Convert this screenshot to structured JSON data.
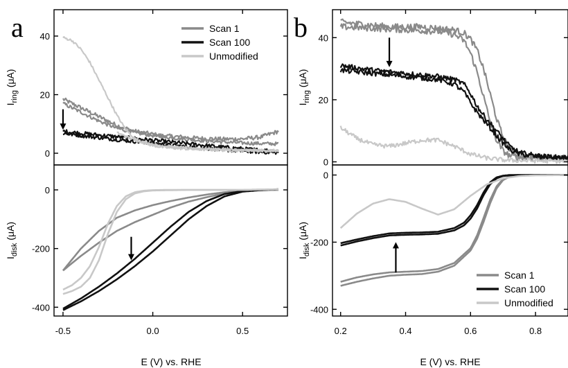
{
  "panels": {
    "a": {
      "letter": "a"
    },
    "b": {
      "letter": "b"
    }
  },
  "chart_data": [
    {
      "type": "line",
      "panel": "a-top",
      "ylabel_main": "I",
      "ylabel_sub": "ring",
      "ylabel_unit": " (μA)",
      "xlim": [
        -0.55,
        0.75
      ],
      "ylim": [
        -4,
        49
      ],
      "yticks": [
        0,
        20,
        40
      ],
      "xticks": [
        -0.5,
        0.0,
        0.5
      ],
      "legend": {
        "position": "top-right",
        "entries": [
          "Scan 1",
          "Scan 100",
          "Unmodified"
        ]
      },
      "series": [
        {
          "name": "Scan 1",
          "color": "#8a8a8a",
          "noise": 0.7,
          "x": [
            -0.5,
            -0.45,
            -0.4,
            -0.35,
            -0.3,
            -0.25,
            -0.2,
            -0.15,
            -0.1,
            -0.05,
            0.0,
            0.05,
            0.1,
            0.15,
            0.2,
            0.3,
            0.4,
            0.5,
            0.6,
            0.7
          ],
          "y": [
            18.5,
            17,
            15.5,
            14,
            12.5,
            11,
            9.5,
            8.5,
            7.5,
            7,
            6.5,
            6,
            5.8,
            5.6,
            5.3,
            5,
            4.8,
            4.9,
            5.5,
            7.5
          ]
        },
        {
          "name": "Scan 1",
          "color": "#8a8a8a",
          "noise": 0.6,
          "x": [
            -0.5,
            -0.4,
            -0.3,
            -0.2,
            -0.1,
            0.0,
            0.1,
            0.2,
            0.3,
            0.4,
            0.5,
            0.6,
            0.7
          ],
          "y": [
            17,
            14,
            11,
            8.5,
            7,
            6,
            5.3,
            4.7,
            4.2,
            3.8,
            3.5,
            3.3,
            3.2
          ]
        },
        {
          "name": "Scan 100",
          "color": "#111111",
          "noise": 0.7,
          "x": [
            -0.5,
            -0.4,
            -0.3,
            -0.2,
            -0.1,
            0.0,
            0.1,
            0.2,
            0.3,
            0.4,
            0.5,
            0.6,
            0.7
          ],
          "y": [
            7.5,
            6.8,
            6.2,
            5.6,
            5,
            4.4,
            3.8,
            3.2,
            2.6,
            2,
            1.5,
            1,
            0.8
          ]
        },
        {
          "name": "Scan 100",
          "color": "#111111",
          "noise": 0.6,
          "x": [
            -0.5,
            -0.4,
            -0.3,
            -0.2,
            -0.1,
            0.0,
            0.1,
            0.2,
            0.3,
            0.4,
            0.5,
            0.6,
            0.7
          ],
          "y": [
            6.8,
            6,
            5.3,
            4.6,
            4,
            3.4,
            2.8,
            2.2,
            1.6,
            1.1,
            0.7,
            0.4,
            0.2
          ]
        },
        {
          "name": "Unmodified",
          "color": "#c8c8c8",
          "noise": 0.4,
          "x": [
            -0.5,
            -0.45,
            -0.4,
            -0.35,
            -0.3,
            -0.25,
            -0.2,
            -0.15,
            -0.1,
            -0.05,
            0.0,
            0.05,
            0.1,
            0.2,
            0.3,
            0.4,
            0.5,
            0.6,
            0.7
          ],
          "y": [
            39.5,
            38.5,
            35.5,
            31,
            25,
            19,
            13,
            8,
            5,
            3.5,
            2.6,
            2.1,
            1.8,
            1.4,
            1.2,
            1,
            0.9,
            0.8,
            0.8
          ]
        },
        {
          "name": "Unmodified",
          "color": "#c8c8c8",
          "noise": 0.4,
          "x": [
            -0.2,
            -0.1,
            0.0,
            0.1,
            0.2,
            0.3,
            0.4,
            0.5,
            0.6,
            0.7
          ],
          "y": [
            7,
            4.5,
            3,
            2.2,
            1.8,
            1.5,
            1.3,
            1.1,
            1,
            0.9
          ]
        }
      ],
      "arrow": {
        "x": -0.5,
        "y_from": 15,
        "y_to": 8
      }
    },
    {
      "type": "line",
      "panel": "a-bottom",
      "ylabel_main": "I",
      "ylabel_sub": "disk",
      "ylabel_unit": " (μA)",
      "xlabel": "E (V) vs. RHE",
      "xlim": [
        -0.55,
        0.75
      ],
      "ylim": [
        -430,
        85
      ],
      "yticks": [
        -400,
        -200,
        0
      ],
      "xticks": [
        -0.5,
        0.0,
        0.5
      ],
      "xtick_labels": [
        "-0.5",
        "0.0",
        "0.5"
      ],
      "series": [
        {
          "name": "Scan 1",
          "color": "#8a8a8a",
          "x": [
            -0.5,
            -0.4,
            -0.3,
            -0.2,
            -0.1,
            0.0,
            0.1,
            0.2,
            0.3,
            0.4,
            0.5,
            0.6,
            0.7
          ],
          "y": [
            -275,
            -225,
            -180,
            -140,
            -110,
            -85,
            -60,
            -40,
            -25,
            -12,
            -4,
            -1,
            0
          ]
        },
        {
          "name": "Scan 1",
          "color": "#8a8a8a",
          "x": [
            -0.5,
            -0.4,
            -0.3,
            -0.2,
            -0.1,
            0.0,
            0.1,
            0.2,
            0.3,
            0.4,
            0.5,
            0.6,
            0.7
          ],
          "y": [
            -275,
            -200,
            -140,
            -95,
            -70,
            -52,
            -38,
            -26,
            -16,
            -8,
            -3,
            -1,
            0
          ]
        },
        {
          "name": "Scan 100",
          "color": "#111111",
          "x": [
            -0.5,
            -0.4,
            -0.3,
            -0.2,
            -0.1,
            0.0,
            0.1,
            0.2,
            0.3,
            0.4,
            0.5,
            0.6,
            0.7
          ],
          "y": [
            -410,
            -380,
            -345,
            -305,
            -260,
            -210,
            -155,
            -100,
            -55,
            -22,
            -6,
            -1,
            2
          ]
        },
        {
          "name": "Scan 100",
          "color": "#111111",
          "x": [
            -0.5,
            -0.4,
            -0.3,
            -0.2,
            -0.1,
            0.0,
            0.1,
            0.2,
            0.3,
            0.4,
            0.5,
            0.6,
            0.7
          ],
          "y": [
            -405,
            -370,
            -330,
            -285,
            -235,
            -180,
            -125,
            -75,
            -38,
            -14,
            -4,
            0,
            2
          ]
        },
        {
          "name": "Unmodified",
          "color": "#c8c8c8",
          "x": [
            -0.5,
            -0.45,
            -0.4,
            -0.35,
            -0.3,
            -0.25,
            -0.2,
            -0.15,
            -0.1,
            -0.05,
            0.0,
            0.1,
            0.2,
            0.3,
            0.4,
            0.5,
            0.6,
            0.7
          ],
          "y": [
            -355,
            -345,
            -330,
            -300,
            -240,
            -150,
            -75,
            -32,
            -12,
            -5,
            -2,
            -1,
            0,
            0,
            0,
            0,
            1,
            2
          ]
        },
        {
          "name": "Unmodified",
          "color": "#c8c8c8",
          "x": [
            -0.5,
            -0.45,
            -0.4,
            -0.35,
            -0.3,
            -0.25,
            -0.2,
            -0.15,
            -0.1,
            -0.05,
            0.0,
            0.1,
            0.2,
            0.3,
            0.4,
            0.5,
            0.6,
            0.7
          ],
          "y": [
            -340,
            -325,
            -300,
            -260,
            -195,
            -115,
            -55,
            -22,
            -8,
            -3,
            -1,
            0,
            0,
            0,
            0,
            0,
            1,
            2
          ]
        }
      ],
      "arrow": {
        "x": -0.12,
        "y_from": -160,
        "y_to": -240
      }
    },
    {
      "type": "line",
      "panel": "b-top",
      "ylabel_main": "I",
      "ylabel_sub": "ring",
      "ylabel_unit": " (μA)",
      "xlim": [
        0.175,
        0.9
      ],
      "ylim": [
        -1,
        49
      ],
      "yticks": [
        0,
        20,
        40
      ],
      "xticks": [
        0.2,
        0.4,
        0.6,
        0.8
      ],
      "series": [
        {
          "name": "Scan 1",
          "color": "#8a8a8a",
          "noise": 1.0,
          "x": [
            0.2,
            0.25,
            0.3,
            0.35,
            0.4,
            0.45,
            0.5,
            0.55,
            0.58,
            0.6,
            0.62,
            0.64,
            0.66,
            0.68,
            0.7,
            0.72,
            0.74,
            0.76,
            0.8,
            0.85,
            0.9
          ],
          "y": [
            45,
            44.5,
            44,
            43.5,
            43.5,
            43.5,
            43,
            42.5,
            41.5,
            39.5,
            36,
            30,
            22,
            14,
            8,
            4,
            2.5,
            1.8,
            1.5,
            1.3,
            1.2
          ]
        },
        {
          "name": "Scan 1",
          "color": "#8a8a8a",
          "noise": 1.0,
          "x": [
            0.2,
            0.3,
            0.4,
            0.5,
            0.55,
            0.58,
            0.6,
            0.62,
            0.64,
            0.66,
            0.68,
            0.7,
            0.72,
            0.74,
            0.8,
            0.9
          ],
          "y": [
            43.5,
            43,
            42.5,
            42,
            41,
            39,
            35,
            29,
            21,
            13,
            7,
            3.5,
            2,
            1.5,
            1.2,
            1
          ]
        },
        {
          "name": "Scan 100",
          "color": "#111111",
          "noise": 0.8,
          "x": [
            0.2,
            0.3,
            0.4,
            0.5,
            0.55,
            0.58,
            0.6,
            0.62,
            0.64,
            0.66,
            0.68,
            0.7,
            0.72,
            0.75,
            0.8,
            0.85,
            0.9
          ],
          "y": [
            31,
            29.5,
            28.5,
            27.5,
            26.5,
            25,
            22,
            18,
            15,
            12.5,
            10,
            7.5,
            5,
            3,
            2,
            1.5,
            1.3
          ]
        },
        {
          "name": "Scan 100",
          "color": "#111111",
          "noise": 0.8,
          "x": [
            0.2,
            0.3,
            0.4,
            0.5,
            0.55,
            0.58,
            0.6,
            0.62,
            0.64,
            0.66,
            0.68,
            0.7,
            0.72,
            0.75,
            0.8,
            0.85,
            0.9
          ],
          "y": [
            29.5,
            28.5,
            27.5,
            26.5,
            25,
            22.5,
            19,
            16,
            13.5,
            11,
            8.5,
            6,
            4,
            2.5,
            1.8,
            1.4,
            1.2
          ]
        },
        {
          "name": "Unmodified",
          "color": "#c8c8c8",
          "noise": 0.7,
          "x": [
            0.2,
            0.25,
            0.3,
            0.35,
            0.4,
            0.45,
            0.5,
            0.55,
            0.6,
            0.65,
            0.7,
            0.75,
            0.8,
            0.9
          ],
          "y": [
            11,
            7.5,
            5.5,
            5,
            6,
            7,
            7,
            5,
            2.5,
            1.2,
            0.6,
            0.4,
            0.3,
            0.2
          ]
        }
      ],
      "arrow": {
        "x": 0.35,
        "y_from": 40,
        "y_to": 30.5
      }
    },
    {
      "type": "line",
      "panel": "b-bottom",
      "ylabel_main": "I",
      "ylabel_sub": "disk",
      "ylabel_unit": " (μA)",
      "xlabel": "E (V) vs. RHE",
      "xlim": [
        0.175,
        0.9
      ],
      "ylim": [
        -420,
        30
      ],
      "yticks": [
        -400,
        -200,
        0
      ],
      "xticks": [
        0.2,
        0.4,
        0.6,
        0.8
      ],
      "xtick_labels": [
        "0.2",
        "0.4",
        "0.6",
        "0.8"
      ],
      "legend": {
        "position": "bottom-right",
        "entries": [
          "Scan 1",
          "Scan 100",
          "Unmodified"
        ]
      },
      "series": [
        {
          "name": "Scan 1",
          "color": "#8a8a8a",
          "x": [
            0.2,
            0.25,
            0.3,
            0.35,
            0.4,
            0.45,
            0.5,
            0.55,
            0.6,
            0.62,
            0.64,
            0.66,
            0.68,
            0.7,
            0.72,
            0.75,
            0.8,
            0.9
          ],
          "y": [
            -330,
            -318,
            -308,
            -300,
            -297,
            -295,
            -288,
            -270,
            -225,
            -190,
            -140,
            -85,
            -40,
            -15,
            -5,
            -1,
            0,
            0
          ]
        },
        {
          "name": "Scan 1",
          "color": "#8a8a8a",
          "x": [
            0.2,
            0.25,
            0.3,
            0.35,
            0.4,
            0.45,
            0.5,
            0.55,
            0.6,
            0.62,
            0.64,
            0.66,
            0.68,
            0.7,
            0.72,
            0.75,
            0.8,
            0.9
          ],
          "y": [
            -318,
            -305,
            -296,
            -290,
            -288,
            -286,
            -280,
            -262,
            -218,
            -180,
            -128,
            -75,
            -34,
            -12,
            -4,
            -1,
            0,
            0
          ]
        },
        {
          "name": "Scan 100",
          "color": "#111111",
          "x": [
            0.2,
            0.25,
            0.3,
            0.35,
            0.4,
            0.45,
            0.5,
            0.55,
            0.58,
            0.6,
            0.62,
            0.64,
            0.66,
            0.68,
            0.7,
            0.72,
            0.75,
            0.8,
            0.9
          ],
          "y": [
            -210,
            -198,
            -188,
            -180,
            -178,
            -177,
            -175,
            -165,
            -150,
            -130,
            -100,
            -60,
            -28,
            -10,
            -3,
            -1,
            0,
            0,
            0
          ]
        },
        {
          "name": "Scan 100",
          "color": "#111111",
          "x": [
            0.2,
            0.25,
            0.3,
            0.35,
            0.4,
            0.45,
            0.5,
            0.55,
            0.58,
            0.6,
            0.62,
            0.64,
            0.66,
            0.68,
            0.7,
            0.72,
            0.75,
            0.8,
            0.9
          ],
          "y": [
            -203,
            -192,
            -182,
            -174,
            -172,
            -171,
            -169,
            -158,
            -142,
            -120,
            -90,
            -52,
            -22,
            -7,
            -2,
            0,
            0,
            0,
            0
          ]
        },
        {
          "name": "Unmodified",
          "color": "#c8c8c8",
          "x": [
            0.2,
            0.25,
            0.3,
            0.35,
            0.4,
            0.45,
            0.5,
            0.55,
            0.6,
            0.65,
            0.7,
            0.75,
            0.8,
            0.9
          ],
          "y": [
            -158,
            -115,
            -85,
            -72,
            -80,
            -100,
            -118,
            -102,
            -62,
            -28,
            -10,
            -3,
            -1,
            0
          ]
        }
      ],
      "arrow": {
        "x": 0.37,
        "y_from": -290,
        "y_to": -200
      }
    }
  ]
}
